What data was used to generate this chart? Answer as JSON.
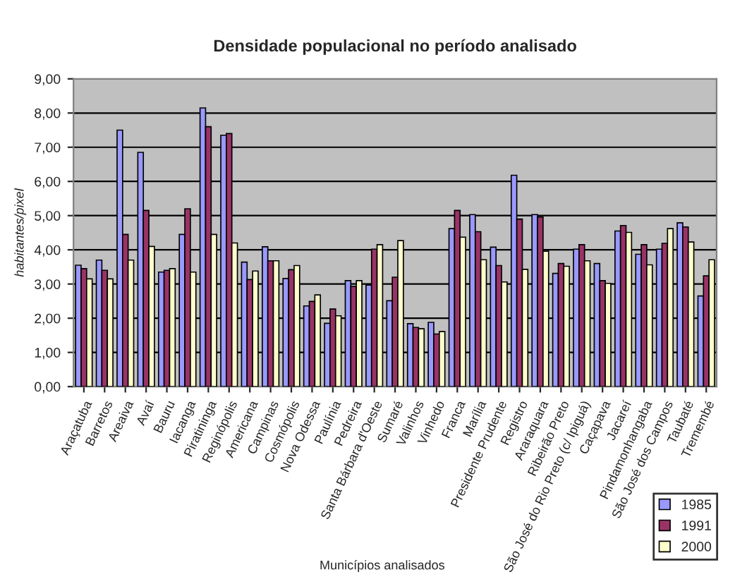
{
  "chart_data": {
    "type": "bar",
    "title": "Densidade populacional no período analisado",
    "xlabel": "Municípios analisados",
    "ylabel": "habitantes/pixel",
    "categories": [
      "Araçatuba",
      "Barretos",
      "Areaiva",
      "Avaí",
      "Bauru",
      "Iacanga",
      "Piratininga",
      "Reginópolis",
      "Americana",
      "Campinas",
      "Cosmópolis",
      "Nova Odessa",
      "Paulínia",
      "Pedreira",
      "Santa Bárbara d'Oeste",
      "Sumaré",
      "Valinhos",
      "Vinhedo",
      "Franca",
      "Marília",
      "Presidente Prudente",
      "Registro",
      "Araraquara",
      "Ribeirão Preto",
      "São José do Rio Preto (c/ Ipiguá)",
      "Caçapava",
      "Jacareí",
      "Pindamonhangaba",
      "São José dos Campos",
      "Taubaté",
      "Tremembé"
    ],
    "series": [
      {
        "name": "1985",
        "color": "#9999ff",
        "values": [
          3.55,
          3.7,
          7.5,
          6.85,
          3.35,
          4.45,
          8.15,
          7.35,
          3.64,
          4.09,
          3.16,
          2.36,
          1.85,
          3.1,
          2.97,
          2.51,
          1.84,
          1.88,
          4.62,
          5.03,
          4.08,
          6.18,
          5.03,
          3.31,
          4.02,
          3.6,
          4.55,
          3.87,
          4.02,
          4.79,
          2.65
        ]
      },
      {
        "name": "1991",
        "color": "#993366",
        "values": [
          3.45,
          3.4,
          4.45,
          5.15,
          3.4,
          5.2,
          7.6,
          7.4,
          3.13,
          3.68,
          3.42,
          2.49,
          2.27,
          2.93,
          4.02,
          3.2,
          1.73,
          1.54,
          5.15,
          4.53,
          3.54,
          4.9,
          4.96,
          3.6,
          4.15,
          3.1,
          4.71,
          4.15,
          4.19,
          4.67,
          3.24
        ]
      },
      {
        "name": "2000",
        "color": "#ffffcc",
        "values": [
          3.15,
          3.15,
          3.7,
          4.1,
          3.45,
          3.35,
          4.45,
          4.2,
          3.38,
          3.68,
          3.54,
          2.68,
          2.07,
          3.1,
          4.15,
          4.27,
          1.69,
          1.61,
          4.37,
          3.71,
          3.06,
          3.43,
          3.96,
          3.52,
          3.68,
          3.02,
          4.51,
          3.56,
          4.62,
          4.23,
          3.71
        ]
      }
    ],
    "ylim": [
      0,
      9
    ],
    "yticks": [
      {
        "value": 0,
        "label": "0,00"
      },
      {
        "value": 1,
        "label": "1,00"
      },
      {
        "value": 2,
        "label": "2,00"
      },
      {
        "value": 3,
        "label": "3,00"
      },
      {
        "value": 4,
        "label": "4,00"
      },
      {
        "value": 5,
        "label": "5,00"
      },
      {
        "value": 6,
        "label": "6,00"
      },
      {
        "value": 7,
        "label": "7,00"
      },
      {
        "value": 8,
        "label": "8,00"
      },
      {
        "value": 9,
        "label": "9,00"
      }
    ],
    "grid": "y",
    "legend": "bottom right"
  }
}
